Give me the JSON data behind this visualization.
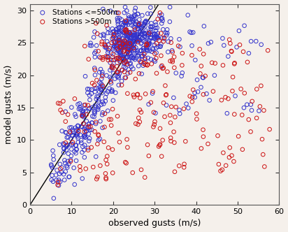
{
  "title": "",
  "xlabel": "observed gusts (m/s)",
  "ylabel": "model gusts (m/s)",
  "xlim": [
    0,
    60
  ],
  "ylim": [
    0,
    31
  ],
  "xticks": [
    0,
    10,
    20,
    30,
    40,
    50,
    60
  ],
  "yticks": [
    0,
    5,
    10,
    15,
    20,
    25,
    30
  ],
  "line_x": [
    0,
    31
  ],
  "line_y": [
    0,
    31
  ],
  "blue_color": "#3333CC",
  "red_color": "#CC1111",
  "marker": "o",
  "marker_size": 4,
  "legend1": "Stations <=500m",
  "legend2": "Stations >500m",
  "bg_color": "#f5f0eb",
  "tick_color": "#333333",
  "label_fontsize": 9,
  "tick_fontsize": 8,
  "legend_fontsize": 7.5
}
